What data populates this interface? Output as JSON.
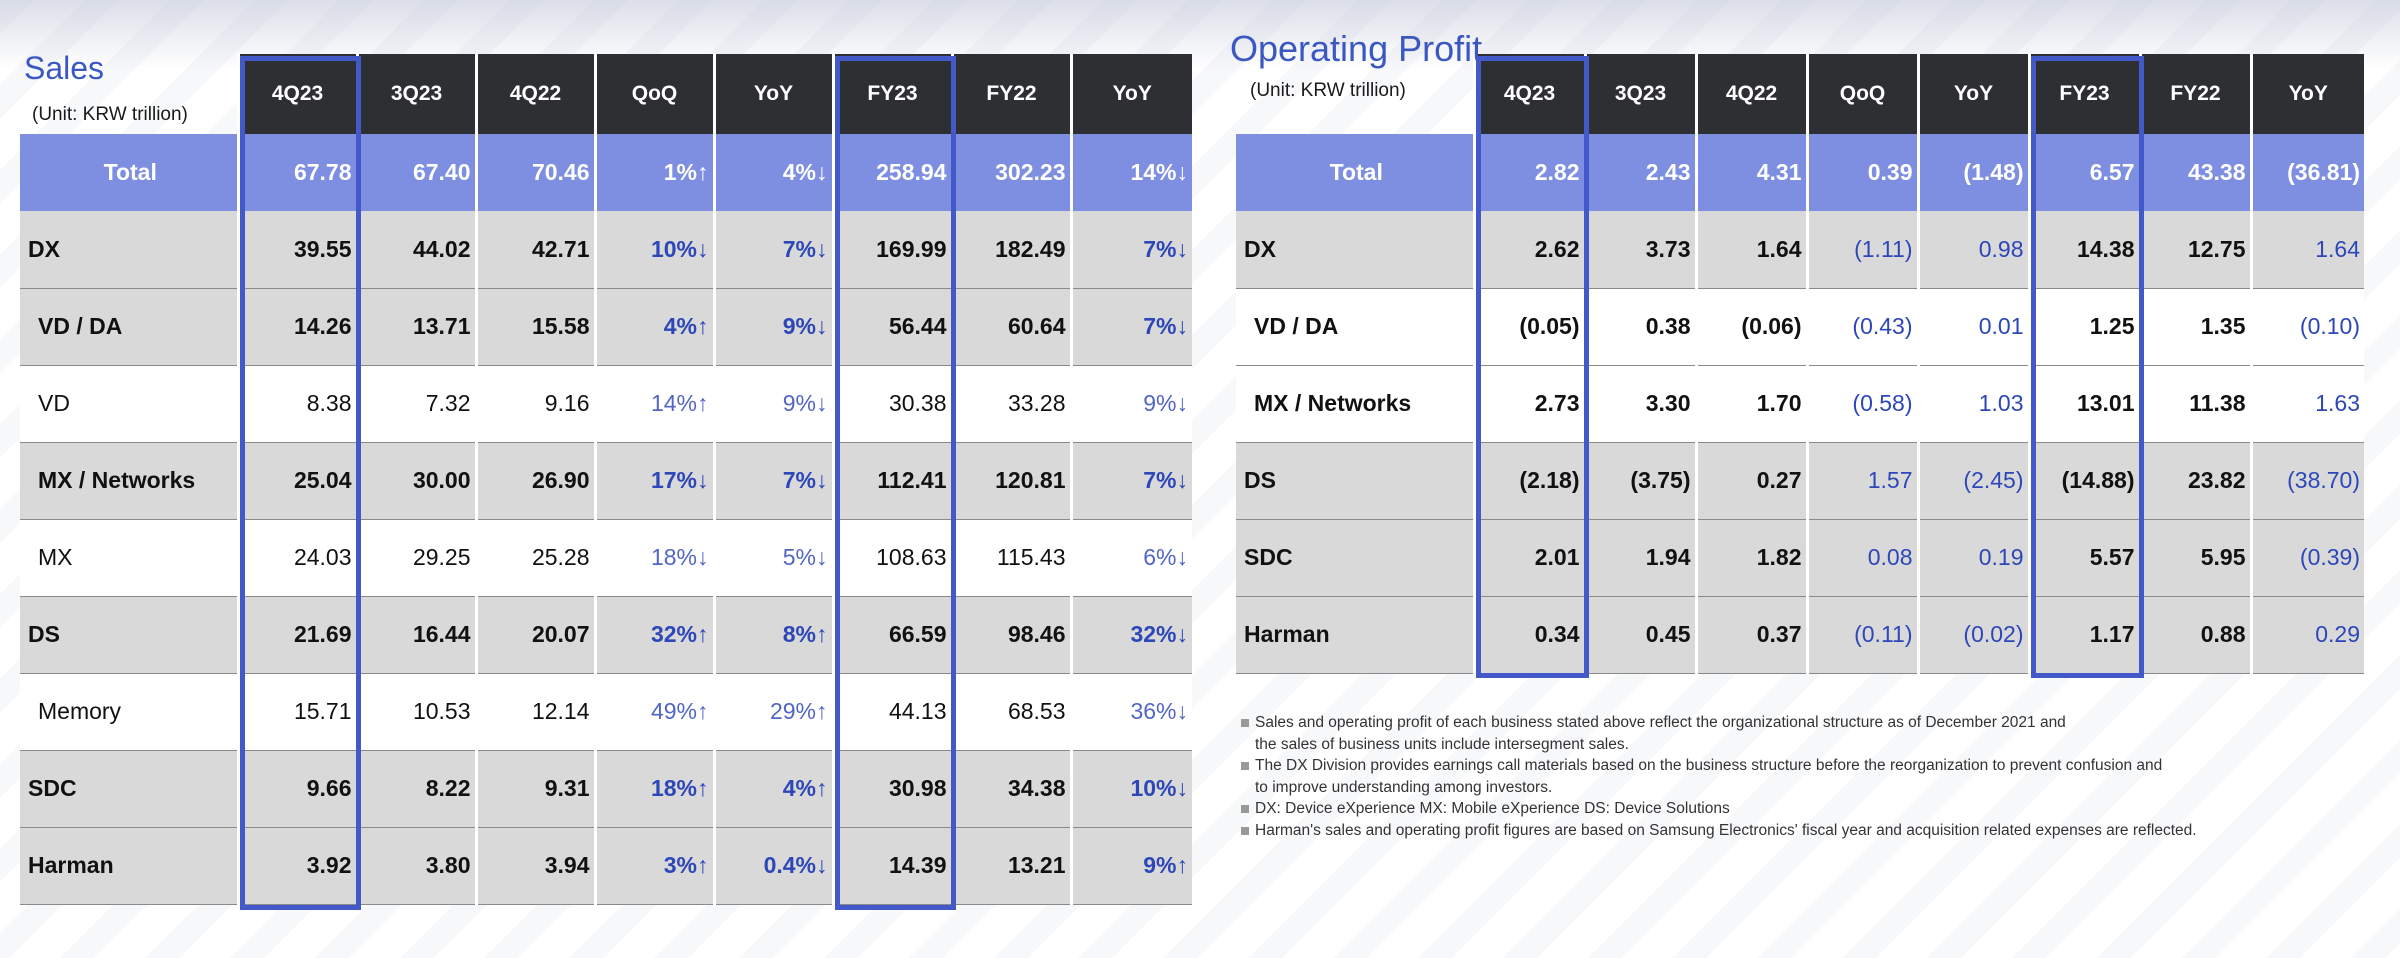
{
  "sales": {
    "title": "Sales",
    "unit": "(Unit: KRW trillion)",
    "headers": [
      "4Q23",
      "3Q23",
      "4Q22",
      "QoQ",
      "YoY",
      "FY23",
      "FY22",
      "YoY"
    ],
    "rows": [
      {
        "label": "Total",
        "values": [
          "67.78",
          "67.40",
          "70.46",
          "1%↑",
          "4%↓",
          "258.94",
          "302.23",
          "14%↓"
        ]
      },
      {
        "label": "DX",
        "values": [
          "39.55",
          "44.02",
          "42.71",
          "10%↓",
          "7%↓",
          "169.99",
          "182.49",
          "7%↓"
        ]
      },
      {
        "label": "VD / DA",
        "values": [
          "14.26",
          "13.71",
          "15.58",
          "4%↑",
          "9%↓",
          "56.44",
          "60.64",
          "7%↓"
        ]
      },
      {
        "label": "VD",
        "values": [
          "8.38",
          "7.32",
          "9.16",
          "14%↑",
          "9%↓",
          "30.38",
          "33.28",
          "9%↓"
        ]
      },
      {
        "label": "MX / Networks",
        "values": [
          "25.04",
          "30.00",
          "26.90",
          "17%↓",
          "7%↓",
          "112.41",
          "120.81",
          "7%↓"
        ]
      },
      {
        "label": "MX",
        "values": [
          "24.03",
          "29.25",
          "25.28",
          "18%↓",
          "5%↓",
          "108.63",
          "115.43",
          "6%↓"
        ]
      },
      {
        "label": "DS",
        "values": [
          "21.69",
          "16.44",
          "20.07",
          "32%↑",
          "8%↑",
          "66.59",
          "98.46",
          "32%↓"
        ]
      },
      {
        "label": "Memory",
        "values": [
          "15.71",
          "10.53",
          "12.14",
          "49%↑",
          "29%↑",
          "44.13",
          "68.53",
          "36%↓"
        ]
      },
      {
        "label": "SDC",
        "values": [
          "9.66",
          "8.22",
          "9.31",
          "18%↑",
          "4%↑",
          "30.98",
          "34.38",
          "10%↓"
        ]
      },
      {
        "label": "Harman",
        "values": [
          "3.92",
          "3.80",
          "3.94",
          "3%↑",
          "0.4%↓",
          "14.39",
          "13.21",
          "9%↑"
        ]
      }
    ]
  },
  "op": {
    "title": "Operating Profit",
    "unit": "(Unit: KRW trillion)",
    "headers": [
      "4Q23",
      "3Q23",
      "4Q22",
      "QoQ",
      "YoY",
      "FY23",
      "FY22",
      "YoY"
    ],
    "rows": [
      {
        "label": "Total",
        "values": [
          "2.82",
          "2.43",
          "4.31",
          "0.39",
          "(1.48)",
          "6.57",
          "43.38",
          "(36.81)"
        ]
      },
      {
        "label": "DX",
        "values": [
          "2.62",
          "3.73",
          "1.64",
          "(1.11)",
          "0.98",
          "14.38",
          "12.75",
          "1.64"
        ]
      },
      {
        "label": "VD / DA",
        "values": [
          "(0.05)",
          "0.38",
          "(0.06)",
          "(0.43)",
          "0.01",
          "1.25",
          "1.35",
          "(0.10)"
        ]
      },
      {
        "label": "MX / Networks",
        "values": [
          "2.73",
          "3.30",
          "1.70",
          "(0.58)",
          "1.03",
          "13.01",
          "11.38",
          "1.63"
        ]
      },
      {
        "label": "DS",
        "values": [
          "(2.18)",
          "(3.75)",
          "0.27",
          "1.57",
          "(2.45)",
          "(14.88)",
          "23.82",
          "(38.70)"
        ]
      },
      {
        "label": "SDC",
        "values": [
          "2.01",
          "1.94",
          "1.82",
          "0.08",
          "0.19",
          "5.57",
          "5.95",
          "(0.39)"
        ]
      },
      {
        "label": "Harman",
        "values": [
          "0.34",
          "0.45",
          "0.37",
          "(0.11)",
          "(0.02)",
          "1.17",
          "0.88",
          "0.29"
        ]
      }
    ]
  },
  "notes": [
    {
      "line1": "Sales and operating profit of each business stated above reflect the organizational structure  as of December 2021 and",
      "line2": "the sales of business units include intersegment sales."
    },
    {
      "line1": "The DX Division provides earnings call materials based on the business structure before the reorganization to prevent confusion and",
      "line2": "to improve understanding among investors."
    },
    {
      "line1": "DX: Device eXperience MX: Mobile eXperience DS: Device Solutions",
      "line2": ""
    },
    {
      "line1": "Harman's sales and operating profit figures are based on Samsung Electronics' fiscal year and acquisition related expenses  are reflected.",
      "line2": ""
    }
  ],
  "colors": {
    "accent": "#3b57c2",
    "header_bg": "#2e2f33",
    "total_bg": "#7e8fe2",
    "row_gray": "#d9d9d9",
    "highlight_border": "#4358c9",
    "change_text": "#2d47b8"
  }
}
